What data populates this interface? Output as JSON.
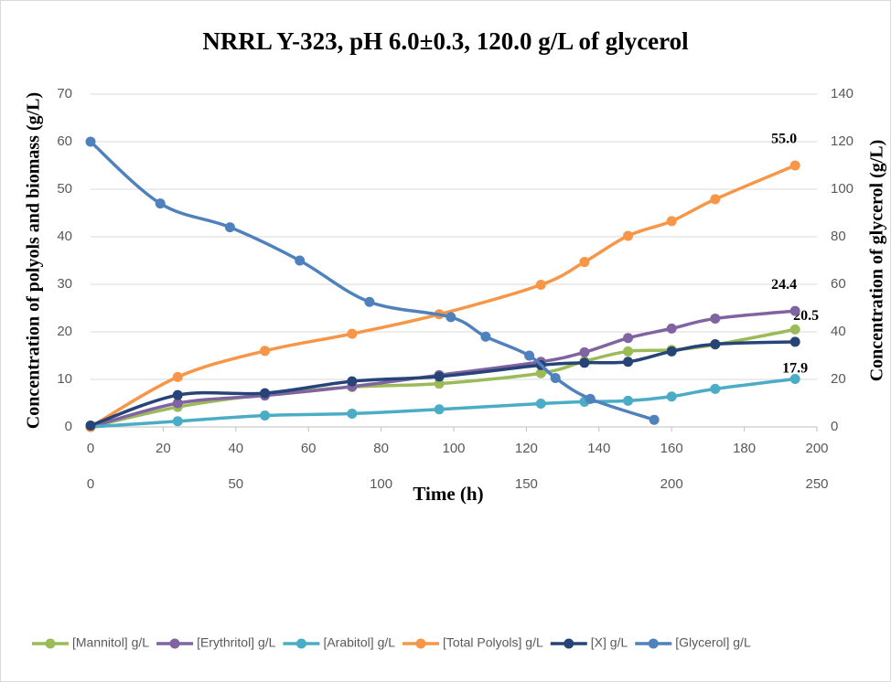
{
  "chart_data": {
    "type": "line",
    "title": "NRRL Y-323, pH 6.0±0.3, 120.0 g/L of glycerol",
    "xlabel": "Time (h)",
    "ylabel": "Concentration of polyols and biomass (g/L)",
    "y2label": "Concentration of glycerol (g/L)",
    "xlim": [
      0,
      200
    ],
    "xticks": [
      0,
      20,
      40,
      60,
      80,
      100,
      120,
      140,
      160,
      180,
      200
    ],
    "x2lim": [
      0,
      250
    ],
    "x2ticks": [
      0,
      50,
      100,
      150,
      200,
      250
    ],
    "ylim": [
      0,
      70
    ],
    "yticks": [
      0,
      10,
      20,
      30,
      40,
      50,
      60,
      70
    ],
    "y2lim": [
      0,
      140
    ],
    "y2ticks": [
      0,
      20,
      40,
      60,
      80,
      100,
      120,
      140
    ],
    "grid": true,
    "legend": "bottom",
    "smooth": true,
    "series": [
      {
        "name": "[Mannitol] g/L",
        "color": "#9bbb59",
        "x": [
          0,
          24,
          48,
          72,
          96,
          124,
          136,
          148,
          160,
          172,
          194
        ],
        "values": [
          0,
          4.2,
          6.8,
          8.4,
          9.1,
          11.3,
          13.8,
          15.9,
          16.2,
          17.3,
          20.5
        ],
        "value_labels": [
          null,
          null,
          null,
          null,
          null,
          null,
          null,
          null,
          null,
          null,
          "20.5"
        ]
      },
      {
        "name": "[Erythritol] g/L",
        "color": "#8064a2",
        "x": [
          0,
          24,
          48,
          72,
          96,
          124,
          136,
          148,
          160,
          172,
          194
        ],
        "values": [
          0,
          5.0,
          6.6,
          8.5,
          10.9,
          13.7,
          15.7,
          18.7,
          20.7,
          22.8,
          24.4
        ],
        "value_labels": [
          null,
          null,
          null,
          null,
          null,
          null,
          null,
          null,
          null,
          null,
          "24.4"
        ]
      },
      {
        "name": "[Arabitol] g/L",
        "color": "#4bacc6",
        "x": [
          0,
          24,
          48,
          72,
          96,
          124,
          136,
          148,
          160,
          172,
          194
        ],
        "values": [
          0,
          1.2,
          2.4,
          2.8,
          3.7,
          4.9,
          5.3,
          5.5,
          6.4,
          8.0,
          10.1
        ]
      },
      {
        "name": "[Total Polyols] g/L",
        "color": "#f79646",
        "x": [
          0,
          24,
          48,
          72,
          96,
          124,
          136,
          148,
          160,
          172,
          194
        ],
        "values": [
          0,
          10.5,
          16.0,
          19.6,
          23.7,
          29.9,
          34.7,
          40.2,
          43.3,
          47.9,
          55.0
        ],
        "value_labels": [
          null,
          null,
          null,
          null,
          null,
          null,
          null,
          null,
          null,
          null,
          "55.0"
        ]
      },
      {
        "name": "[X] g/L",
        "color": "#264478",
        "x": [
          0,
          24,
          48,
          72,
          96,
          124,
          136,
          148,
          160,
          172,
          194
        ],
        "values": [
          0.3,
          6.7,
          7.1,
          9.6,
          10.6,
          13.0,
          13.5,
          13.7,
          15.9,
          17.4,
          17.9
        ],
        "value_labels": [
          null,
          null,
          null,
          null,
          null,
          null,
          null,
          null,
          null,
          null,
          "17.9"
        ]
      },
      {
        "name": "[Glycerol] g/L",
        "color": "#4f81bd",
        "axis": "y2",
        "xaxis": "x2",
        "x": [
          0,
          24,
          48,
          72,
          96,
          124,
          136,
          151,
          160,
          172,
          194
        ],
        "values": [
          120,
          94,
          84,
          70,
          52.6,
          46.2,
          38,
          30,
          20.6,
          11.8,
          3
        ]
      }
    ]
  }
}
